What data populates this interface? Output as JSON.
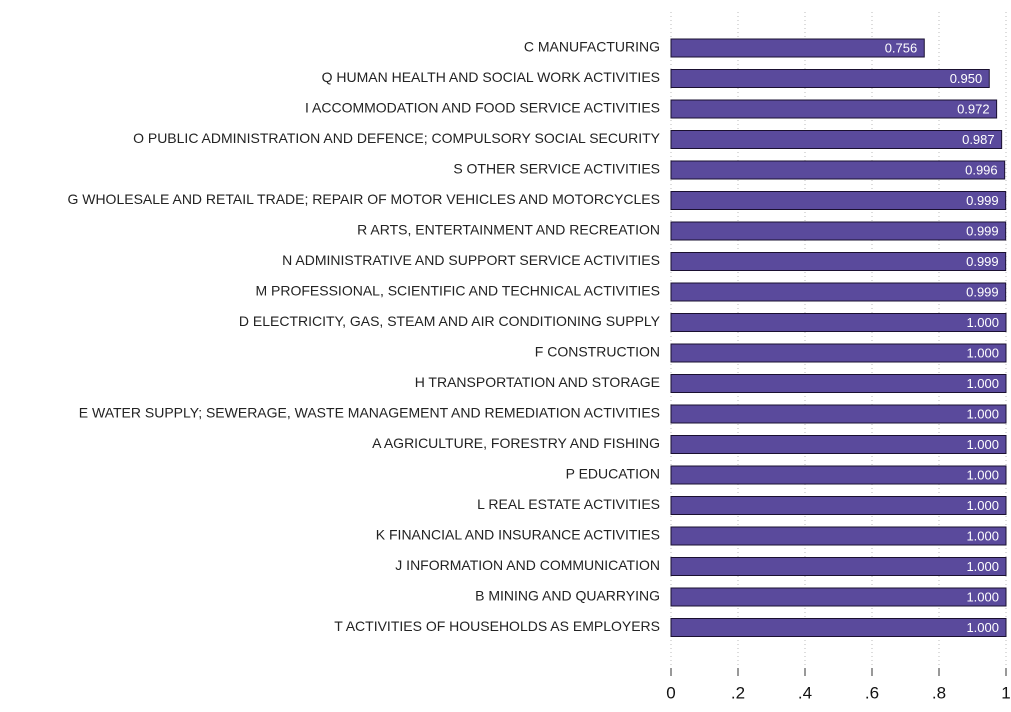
{
  "chart_data": {
    "type": "hbar",
    "categories": [
      "C MANUFACTURING",
      "Q HUMAN HEALTH AND SOCIAL WORK ACTIVITIES",
      "I ACCOMMODATION AND FOOD SERVICE ACTIVITIES",
      "O PUBLIC ADMINISTRATION AND DEFENCE; COMPULSORY SOCIAL SECURITY",
      "S OTHER SERVICE ACTIVITIES",
      "G WHOLESALE AND RETAIL TRADE; REPAIR OF MOTOR VEHICLES AND MOTORCYCLES",
      "R ARTS, ENTERTAINMENT AND RECREATION",
      "N ADMINISTRATIVE AND SUPPORT SERVICE ACTIVITIES",
      "M PROFESSIONAL, SCIENTIFIC AND TECHNICAL ACTIVITIES",
      "D ELECTRICITY, GAS, STEAM AND AIR CONDITIONING SUPPLY",
      "F CONSTRUCTION",
      "H TRANSPORTATION AND STORAGE",
      "E WATER SUPPLY; SEWERAGE, WASTE MANAGEMENT AND REMEDIATION ACTIVITIES",
      "A AGRICULTURE, FORESTRY AND FISHING",
      "P EDUCATION",
      "L REAL ESTATE ACTIVITIES",
      "K FINANCIAL AND INSURANCE ACTIVITIES",
      "J INFORMATION AND COMMUNICATION",
      "B MINING AND QUARRYING",
      "T ACTIVITIES OF HOUSEHOLDS AS EMPLOYERS"
    ],
    "values": [
      0.756,
      0.95,
      0.972,
      0.987,
      0.996,
      0.999,
      0.999,
      0.999,
      0.999,
      1,
      1,
      1,
      1,
      1,
      1,
      1,
      1,
      1,
      1,
      1
    ],
    "value_labels": [
      "0.756",
      "0.950",
      "0.972",
      "0.987",
      "0.996",
      "0.999",
      "0.999",
      "0.999",
      "0.999",
      "1.000",
      "1.000",
      "1.000",
      "1.000",
      "1.000",
      "1.000",
      "1.000",
      "1.000",
      "1.000",
      "1.000",
      "1.000"
    ],
    "color": "#5a4a9c",
    "xlim": [
      0,
      1
    ],
    "xticks": [
      0,
      {
        "value": 0.2,
        "label": ".2"
      },
      {
        "value": 0.4,
        "label": ".4"
      },
      {
        "value": 0.6,
        "label": ".6"
      },
      {
        "value": 0.8,
        "label": ".8"
      },
      1
    ],
    "grid": true
  }
}
